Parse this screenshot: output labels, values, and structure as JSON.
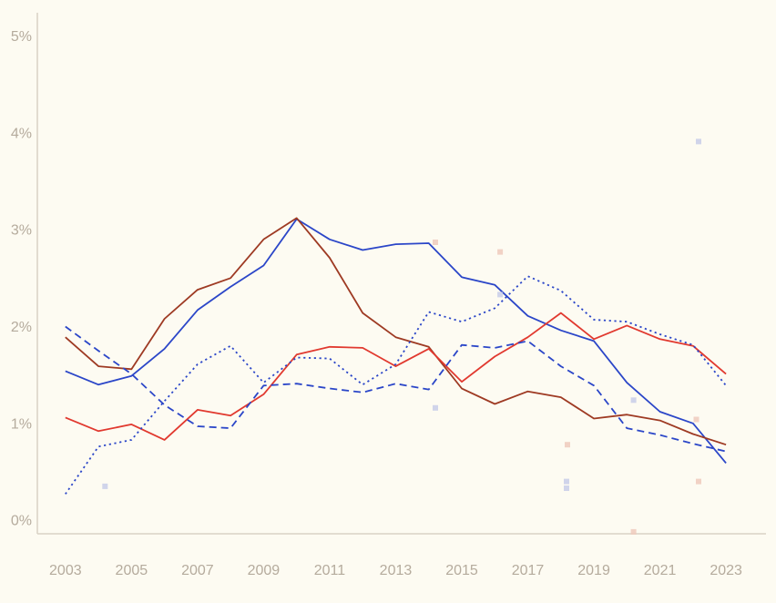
{
  "page": {
    "background_color": "#fdfbf2",
    "axis_color": "#d9d2c4",
    "tick_label_color": "#b5ab9d"
  },
  "chart_data": {
    "type": "line",
    "title": "",
    "xlabel": "",
    "ylabel": "",
    "grid": false,
    "legend": "none",
    "x": [
      2003,
      2004,
      2005,
      2006,
      2007,
      2008,
      2009,
      2010,
      2011,
      2012,
      2013,
      2014,
      2015,
      2016,
      2017,
      2018,
      2019,
      2020,
      2021,
      2022,
      2023
    ],
    "xlim": [
      2002.15,
      2024.21
    ],
    "ylim": [
      -0.13,
      5.25
    ],
    "x_ticks": [
      2003,
      2005,
      2007,
      2009,
      2011,
      2013,
      2015,
      2017,
      2019,
      2021,
      2023
    ],
    "x_tick_labels": [
      "2003",
      "2005",
      "2007",
      "2009",
      "2011",
      "2013",
      "2015",
      "2017",
      "2019",
      "2021",
      "2023"
    ],
    "y_ticks": [
      0,
      1,
      2,
      3,
      4,
      5
    ],
    "y_tick_labels": [
      "0%",
      "1%",
      "2%",
      "3%",
      "4%",
      "5%"
    ],
    "series": [
      {
        "name": "blue-solid",
        "color": "#2b46c8",
        "style": "solid",
        "values": [
          1.55,
          1.41,
          1.5,
          1.78,
          2.18,
          2.42,
          2.64,
          3.12,
          2.91,
          2.8,
          2.86,
          2.87,
          2.52,
          2.44,
          2.12,
          1.97,
          1.86,
          1.43,
          1.13,
          1.01,
          0.6
        ]
      },
      {
        "name": "dark-red-solid",
        "color": "#9e3a23",
        "style": "solid",
        "values": [
          1.9,
          1.6,
          1.57,
          2.09,
          2.39,
          2.51,
          2.91,
          3.13,
          2.72,
          2.15,
          1.9,
          1.8,
          1.37,
          1.21,
          1.34,
          1.28,
          1.06,
          1.1,
          1.04,
          0.9,
          0.79
        ]
      },
      {
        "name": "red-solid",
        "color": "#e1392f",
        "style": "solid",
        "values": [
          1.07,
          0.93,
          1.0,
          0.84,
          1.15,
          1.09,
          1.31,
          1.72,
          1.8,
          1.79,
          1.6,
          1.78,
          1.44,
          1.7,
          1.9,
          2.15,
          1.88,
          2.02,
          1.88,
          1.81,
          1.52
        ]
      },
      {
        "name": "blue-dashed",
        "color": "#2b46c8",
        "style": "dashed",
        "values": [
          2.01,
          1.76,
          1.52,
          1.2,
          0.98,
          0.96,
          1.4,
          1.42,
          1.37,
          1.33,
          1.42,
          1.36,
          1.82,
          1.79,
          1.86,
          1.6,
          1.4,
          0.96,
          0.89,
          0.8,
          0.72
        ]
      },
      {
        "name": "blue-dotted",
        "color": "#2b46c8",
        "style": "dotted",
        "values": [
          0.28,
          0.77,
          0.84,
          1.24,
          1.62,
          1.81,
          1.43,
          1.69,
          1.68,
          1.41,
          1.62,
          2.16,
          2.06,
          2.2,
          2.53,
          2.38,
          2.08,
          2.06,
          1.93,
          1.82,
          1.4
        ]
      }
    ],
    "scatter": [
      {
        "x": 2004.2,
        "y": 0.36,
        "color": "#c8cce9"
      },
      {
        "x": 2014.2,
        "y": 2.88,
        "color": "#eecabd"
      },
      {
        "x": 2014.2,
        "y": 1.17,
        "color": "#c8cce9"
      },
      {
        "x": 2016.16,
        "y": 2.78,
        "color": "#eecabd"
      },
      {
        "x": 2016.16,
        "y": 2.34,
        "color": "#c8cce9"
      },
      {
        "x": 2018.2,
        "y": 0.79,
        "color": "#eecabd"
      },
      {
        "x": 2018.17,
        "y": 0.41,
        "color": "#c8cce9"
      },
      {
        "x": 2018.17,
        "y": 0.34,
        "color": "#c8cce9"
      },
      {
        "x": 2020.2,
        "y": 1.25,
        "color": "#c8cce9"
      },
      {
        "x": 2020.2,
        "y": -0.11,
        "color": "#eecabd"
      },
      {
        "x": 2022.1,
        "y": 1.05,
        "color": "#eecabd"
      },
      {
        "x": 2022.17,
        "y": 0.41,
        "color": "#eecabd"
      },
      {
        "x": 2022.17,
        "y": 3.92,
        "color": "#c8cce9"
      }
    ]
  }
}
